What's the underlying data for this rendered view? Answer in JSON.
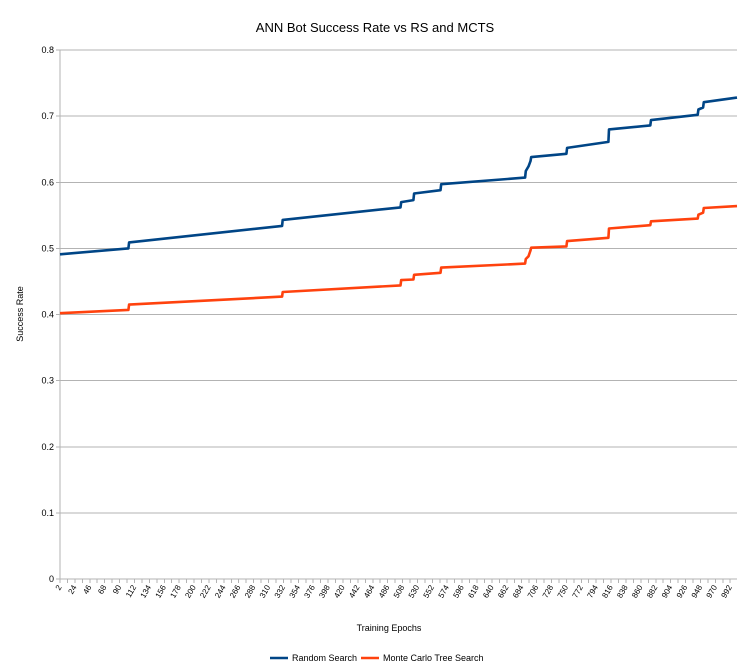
{
  "chart_data": {
    "type": "line",
    "title": "ANN Bot Success Rate vs RS and MCTS",
    "xlabel": "Training Epochs",
    "ylabel": "Success Rate",
    "ylim": [
      0,
      0.8
    ],
    "xlim": [
      2,
      1002
    ],
    "yticks": [
      "0",
      "0.1",
      "0.2",
      "0.3",
      "0.4",
      "0.5",
      "0.6",
      "0.7",
      "0.8"
    ],
    "xtick_labels": [
      "2",
      "24",
      "46",
      "68",
      "90",
      "112",
      "134",
      "156",
      "178",
      "200",
      "222",
      "244",
      "266",
      "288",
      "310",
      "332",
      "354",
      "376",
      "398",
      "420",
      "442",
      "464",
      "486",
      "508",
      "530",
      "552",
      "574",
      "596",
      "618",
      "640",
      "662",
      "684",
      "706",
      "728",
      "750",
      "772",
      "794",
      "816",
      "838",
      "860",
      "882",
      "904",
      "926",
      "948",
      "970",
      "992"
    ],
    "grid": "horizontal",
    "legend_position": "bottom",
    "series": [
      {
        "name": "Random Search",
        "color": "#004586",
        "points": [
          [
            2,
            0.491
          ],
          [
            103,
            0.5
          ],
          [
            104,
            0.509
          ],
          [
            330,
            0.534
          ],
          [
            331,
            0.543
          ],
          [
            505,
            0.562
          ],
          [
            506,
            0.57
          ],
          [
            524,
            0.573
          ],
          [
            525,
            0.583
          ],
          [
            564,
            0.588
          ],
          [
            565,
            0.597
          ],
          [
            689,
            0.607
          ],
          [
            690,
            0.617
          ],
          [
            694,
            0.624
          ],
          [
            697,
            0.632
          ],
          [
            698,
            0.638
          ],
          [
            750,
            0.643
          ],
          [
            751,
            0.652
          ],
          [
            812,
            0.661
          ],
          [
            813,
            0.68
          ],
          [
            874,
            0.686
          ],
          [
            875,
            0.694
          ],
          [
            944,
            0.702
          ],
          [
            945,
            0.71
          ],
          [
            952,
            0.713
          ],
          [
            953,
            0.721
          ],
          [
            1002,
            0.728
          ]
        ]
      },
      {
        "name": "Monte Carlo Tree Search",
        "color": "#ff420e",
        "points": [
          [
            2,
            0.402
          ],
          [
            103,
            0.407
          ],
          [
            104,
            0.415
          ],
          [
            330,
            0.427
          ],
          [
            331,
            0.434
          ],
          [
            505,
            0.444
          ],
          [
            506,
            0.452
          ],
          [
            524,
            0.453
          ],
          [
            525,
            0.46
          ],
          [
            564,
            0.463
          ],
          [
            565,
            0.471
          ],
          [
            689,
            0.477
          ],
          [
            690,
            0.484
          ],
          [
            694,
            0.488
          ],
          [
            697,
            0.497
          ],
          [
            698,
            0.501
          ],
          [
            750,
            0.503
          ],
          [
            751,
            0.511
          ],
          [
            812,
            0.516
          ],
          [
            813,
            0.53
          ],
          [
            874,
            0.535
          ],
          [
            875,
            0.541
          ],
          [
            944,
            0.545
          ],
          [
            945,
            0.551
          ],
          [
            952,
            0.554
          ],
          [
            953,
            0.561
          ],
          [
            1002,
            0.564
          ]
        ]
      }
    ]
  }
}
